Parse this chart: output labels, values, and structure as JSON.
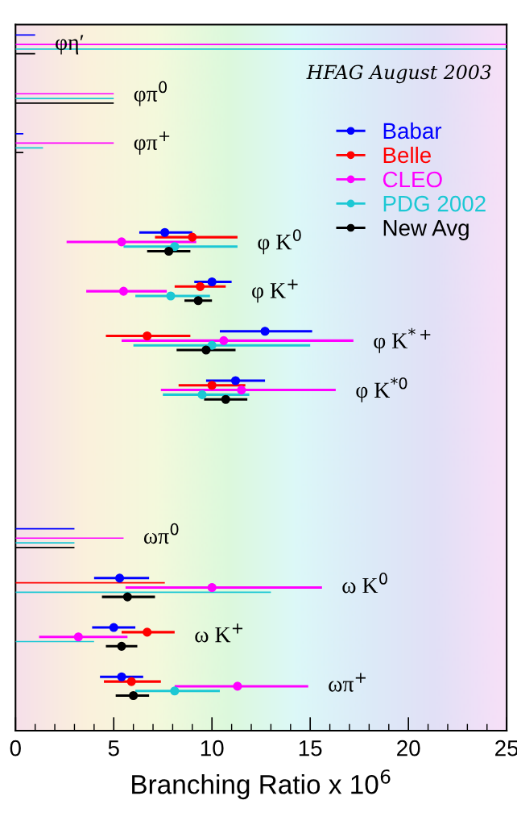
{
  "chart_data": {
    "type": "scatter",
    "orientation": "horizontal",
    "xlabel": "Branching Ratio x 10$^{6}$",
    "annotations": [
      "HFAG August 2003"
    ],
    "categories": [
      "φη′",
      "φπ$^{0}$",
      "φπ$^{+}$",
      null,
      "φ K$^{0}$",
      "φ K$^{+}$",
      "φ K$^{*+}$",
      "φ K$^{*0}$",
      null,
      null,
      "ωπ$^{0}$",
      "ω K$^{0}$",
      "ω K$^{+}$",
      "ωπ$^{+}$"
    ],
    "xlim": [
      0,
      25
    ],
    "xticks": [
      0,
      5,
      10,
      15,
      20,
      25
    ],
    "grid": false,
    "legend": "top right",
    "marker": "circle",
    "series": [
      {
        "name": "Babar",
        "color": "#0000ff",
        "values": [
          null,
          null,
          null,
          null,
          7.6,
          10.0,
          12.7,
          11.2,
          null,
          null,
          null,
          5.3,
          5.0,
          5.4
        ],
        "errors": [
          null,
          null,
          null,
          null,
          [
            6.3,
            9.0
          ],
          [
            9.1,
            11.0
          ],
          [
            10.4,
            15.1
          ],
          [
            9.7,
            12.7
          ],
          null,
          null,
          null,
          [
            4.0,
            6.8
          ],
          [
            3.9,
            6.1
          ],
          [
            4.3,
            6.5
          ]
        ]
      },
      {
        "name": "Belle",
        "color": "#ff0000",
        "values": [
          null,
          null,
          null,
          null,
          9.0,
          9.4,
          6.7,
          10.0,
          null,
          null,
          null,
          null,
          6.7,
          5.9
        ],
        "errors": [
          null,
          null,
          null,
          null,
          [
            7.1,
            11.3
          ],
          [
            8.1,
            10.7
          ],
          [
            4.6,
            8.9
          ],
          [
            8.3,
            11.7
          ],
          null,
          null,
          null,
          null,
          [
            5.4,
            8.1
          ],
          [
            4.5,
            7.4
          ]
        ]
      },
      {
        "name": "CLEO",
        "color": "#ff00ff",
        "values": [
          null,
          null,
          null,
          null,
          5.4,
          5.5,
          10.6,
          11.5,
          null,
          null,
          null,
          10.0,
          3.2,
          11.3
        ],
        "errors": [
          null,
          null,
          null,
          null,
          [
            2.6,
            9.2
          ],
          [
            3.6,
            7.7
          ],
          [
            5.4,
            17.2
          ],
          [
            7.4,
            16.3
          ],
          null,
          null,
          null,
          [
            5.6,
            15.6
          ],
          [
            1.2,
            5.7
          ],
          [
            8.1,
            14.9
          ]
        ]
      },
      {
        "name": "PDG 2002",
        "color": "#1cc8d4",
        "values": [
          null,
          null,
          null,
          null,
          8.1,
          7.9,
          10.0,
          9.5,
          null,
          null,
          null,
          null,
          null,
          8.1
        ],
        "errors": [
          null,
          null,
          null,
          null,
          [
            5.5,
            11.3
          ],
          [
            6.1,
            9.9
          ],
          [
            6.0,
            15.0
          ],
          [
            7.5,
            11.9
          ],
          null,
          null,
          null,
          null,
          null,
          [
            6.1,
            10.4
          ]
        ]
      },
      {
        "name": "New Avg",
        "color": "#000000",
        "values": [
          null,
          null,
          null,
          null,
          7.8,
          9.3,
          9.7,
          10.7,
          null,
          null,
          null,
          5.7,
          5.4,
          6.0
        ],
        "errors": [
          null,
          null,
          null,
          null,
          [
            6.7,
            8.9
          ],
          [
            8.6,
            10.0
          ],
          [
            8.2,
            11.2
          ],
          [
            9.6,
            11.8
          ],
          null,
          null,
          null,
          [
            4.4,
            7.1
          ],
          [
            4.6,
            6.2
          ],
          [
            5.1,
            6.8
          ]
        ]
      },
      {
        "type": "bar",
        "color": "#0000ff",
        "values": [
          1.0,
          null,
          0.4,
          null,
          null,
          null,
          null,
          null,
          null,
          null,
          3.0,
          null,
          null,
          null
        ]
      },
      {
        "type": "bar",
        "color": "#ff0000",
        "values": [
          null,
          null,
          null,
          null,
          null,
          null,
          null,
          null,
          null,
          null,
          null,
          7.6,
          null,
          null
        ]
      },
      {
        "type": "bar",
        "color": "#ff00ff",
        "values": [
          25,
          5.0,
          5.0,
          null,
          null,
          null,
          null,
          null,
          null,
          null,
          5.5,
          null,
          null,
          null
        ]
      },
      {
        "type": "bar",
        "color": "#1cc8d4",
        "values": [
          25,
          5.0,
          1.4,
          null,
          null,
          null,
          null,
          null,
          null,
          null,
          3.0,
          13.0,
          4.0,
          null
        ]
      },
      {
        "type": "bar",
        "color": "#000000",
        "values": [
          1.0,
          5.0,
          0.4,
          null,
          null,
          null,
          null,
          null,
          null,
          null,
          3.0,
          null,
          null,
          null
        ]
      }
    ]
  }
}
